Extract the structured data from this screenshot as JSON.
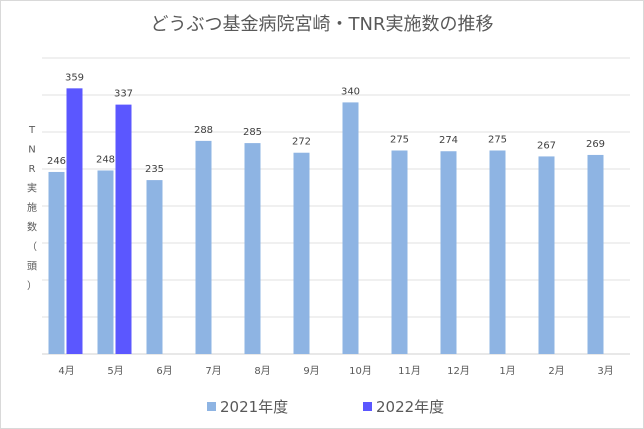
{
  "chart_data": {
    "type": "bar",
    "title": "どうぶつ基金病院宮崎・TNR実施数の推移",
    "xlabel": "",
    "ylabel": "TNR実施数（頭）",
    "ylim": [
      0,
      400
    ],
    "grid_step": 50,
    "grid": true,
    "legend_position": "bottom",
    "categories": [
      "4月",
      "5月",
      "6月",
      "7月",
      "8月",
      "9月",
      "10月",
      "11月",
      "12月",
      "1月",
      "2月",
      "3月"
    ],
    "series": [
      {
        "name": "2021年度",
        "color": "#8EB4E3",
        "values": [
          246,
          248,
          235,
          288,
          285,
          272,
          340,
          275,
          274,
          275,
          267,
          269
        ]
      },
      {
        "name": "2022年度",
        "color": "#5B57FF",
        "values": [
          359,
          337,
          null,
          null,
          null,
          null,
          null,
          null,
          null,
          null,
          null,
          null
        ]
      }
    ]
  }
}
